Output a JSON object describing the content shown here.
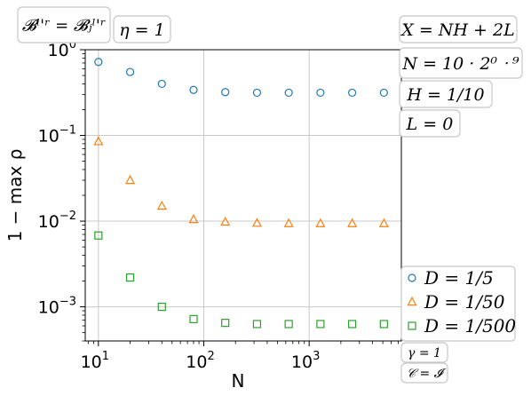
{
  "chart_data": {
    "type": "scatter",
    "xlabel": "N",
    "ylabel": "1 − max ρ",
    "xscale": "log",
    "yscale": "log",
    "xlim": [
      7.5,
      7500
    ],
    "ylim": [
      0.0004,
      1.0
    ],
    "xticks": [
      {
        "value": 10,
        "base": "10",
        "exp": "1"
      },
      {
        "value": 100,
        "base": "10",
        "exp": "2"
      },
      {
        "value": 1000,
        "base": "10",
        "exp": "3"
      }
    ],
    "yticks": [
      {
        "value": 1,
        "base": "10",
        "exp": "0"
      },
      {
        "value": 0.1,
        "base": "10",
        "exp": "−1"
      },
      {
        "value": 0.01,
        "base": "10",
        "exp": "−2"
      },
      {
        "value": 0.001,
        "base": "10",
        "exp": "−3"
      }
    ],
    "grid": true,
    "x": [
      10,
      20,
      40,
      80,
      160,
      320,
      640,
      1280,
      2560,
      5120
    ],
    "series": [
      {
        "name": "D = 1/5",
        "marker": "circle",
        "color": "#1f77b4",
        "values": [
          0.72,
          0.55,
          0.4,
          0.34,
          0.32,
          0.315,
          0.315,
          0.315,
          0.315,
          0.315
        ]
      },
      {
        "name": "D = 1/50",
        "marker": "triangle",
        "color": "#ff7f0e",
        "values": [
          0.085,
          0.03,
          0.015,
          0.0105,
          0.0098,
          0.0095,
          0.0094,
          0.0094,
          0.0094,
          0.0094
        ]
      },
      {
        "name": "D = 1/500",
        "marker": "square",
        "color": "#2ca02c",
        "values": [
          0.0068,
          0.0022,
          0.001,
          0.00072,
          0.00065,
          0.00063,
          0.00063,
          0.00063,
          0.00063,
          0.00063
        ]
      }
    ],
    "legend_position": "bottom-right",
    "annotations": {
      "top_left": [
        "𝓑ˡ'ʳ = 𝓑ⱼˡ'ʳ",
        "η = 1"
      ],
      "right": [
        "X = NH + 2L",
        "N = 10 · 2⁰ ᐧ ⁹",
        "H = 1/10",
        "L = 0"
      ],
      "bottom_right": [
        "γ = 1",
        "𝒞 = 𝓘"
      ]
    }
  }
}
